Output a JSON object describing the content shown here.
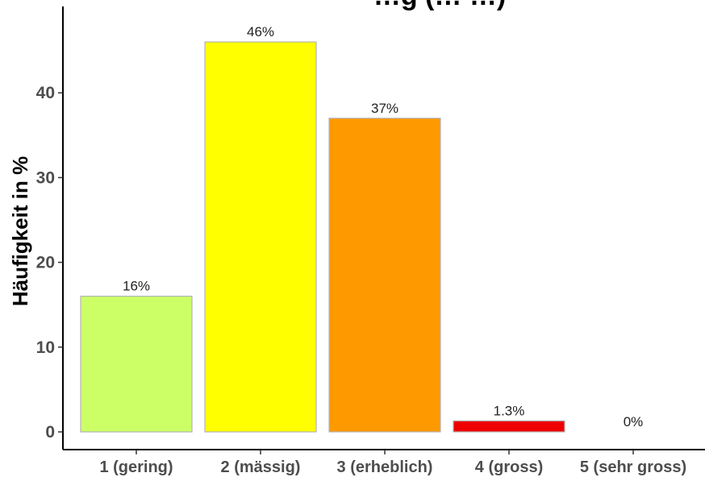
{
  "chart_data": {
    "type": "bar",
    "title": "…g (… …)",
    "xlabel": "",
    "ylabel": "Häufigkeit in %",
    "categories": [
      "1 (gering)",
      "2 (mässig)",
      "3 (erheblich)",
      "4 (gross)",
      "5 (sehr gross)"
    ],
    "values": [
      16,
      46,
      37,
      1.3,
      0
    ],
    "value_labels": [
      "16%",
      "46%",
      "37%",
      "1.3%",
      "0%"
    ],
    "colors": [
      "#ccff66",
      "#ffff00",
      "#ff9900",
      "#ee0000",
      "#d9d9d9"
    ],
    "bar_border_color": "#b3b3b3",
    "ylim": [
      0,
      48
    ],
    "yticks": [
      0,
      10,
      20,
      30,
      40
    ],
    "grid": false,
    "legend": "none"
  }
}
